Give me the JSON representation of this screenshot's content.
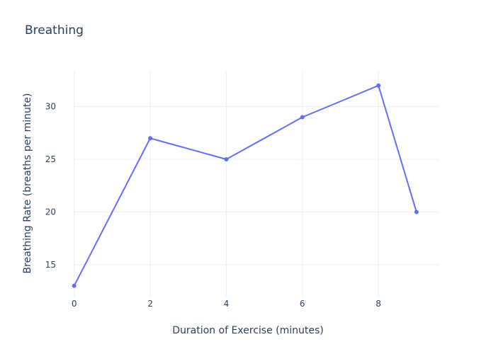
{
  "chart_data": {
    "type": "line",
    "title": "Breathing",
    "xlabel": "Duration of Exercise (minutes)",
    "ylabel": "Breathing Rate (breaths per minute)",
    "x": [
      0,
      2,
      4,
      6,
      8,
      9
    ],
    "series": [
      {
        "values": [
          13,
          27,
          25,
          29,
          32,
          20
        ]
      }
    ],
    "xlim": [
      -0.05,
      9.6
    ],
    "ylim": [
      11.9,
      33.4
    ],
    "xticks": [
      0,
      2,
      4,
      6,
      8
    ],
    "yticks": [
      15,
      20,
      25,
      30
    ],
    "grid": true,
    "legend": "none",
    "colors": {
      "line": "#636efa",
      "grid": "#ebf0f8",
      "text": "#2a3f5f",
      "background": "#ffffff"
    }
  }
}
